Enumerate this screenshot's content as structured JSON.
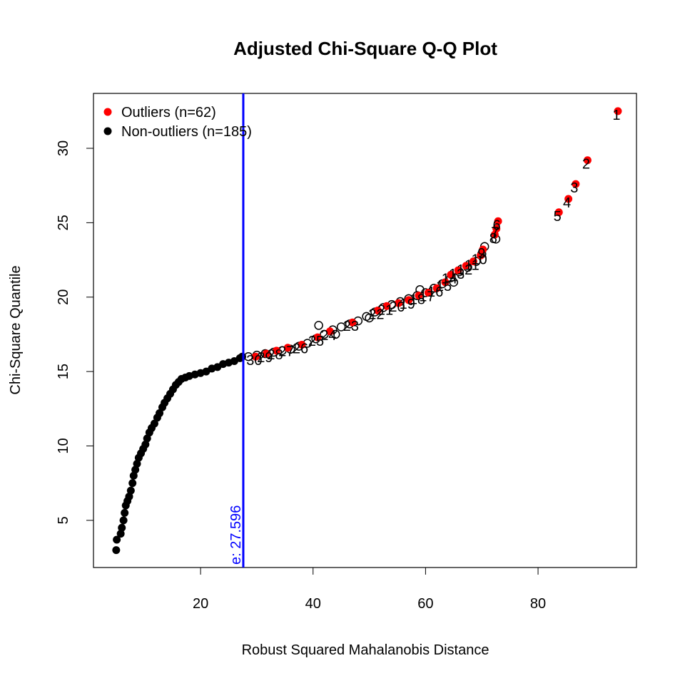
{
  "chart_data": {
    "type": "scatter",
    "title": "Adjusted Chi-Square Q-Q Plot",
    "x_label": "Robust Squared Mahalanobis Distance",
    "y_label": "Chi-Square Quantile",
    "xlim": [
      0.96,
      97.5
    ],
    "ylim": [
      1.83,
      33.69
    ],
    "xticks": [
      20,
      40,
      60,
      80
    ],
    "yticks": [
      5,
      10,
      15,
      20,
      25,
      30
    ],
    "cutoff": 27.596,
    "cutoff_color": "blue",
    "cutoff_label": "e: 27.596",
    "legend": "top-left",
    "series": [
      {
        "name": "Outliers (n=62)",
        "color": "red",
        "marker": "filled",
        "x": [
          94.2,
          88.8,
          86.7,
          85.4,
          83.7,
          72.9,
          72.6,
          72.3,
          70.2,
          69.8,
          68.5,
          67.2,
          65.8,
          64.5,
          63.5,
          62,
          60.5,
          58.8,
          57,
          55.2,
          53.1,
          51.5,
          47,
          43,
          40.8,
          38,
          35.5,
          33.5,
          31.7,
          29.8
        ],
        "values": [
          32.5,
          29.2,
          27.6,
          26.6,
          25.7,
          25.1,
          24.6,
          24.2,
          23.2,
          22.8,
          22.4,
          22.1,
          21.8,
          21.5,
          21.0,
          20.6,
          20.3,
          20.1,
          19.8,
          19.6,
          19.4,
          19.1,
          18.3,
          17.7,
          17.3,
          16.8,
          16.6,
          16.4,
          16.2,
          16.0
        ],
        "point_labels": [
          "1",
          "2",
          "3",
          "4",
          "5",
          "6",
          "7",
          "8",
          "9",
          "10",
          "11",
          "12",
          "13",
          "14",
          "15",
          "16",
          "17",
          "18",
          "19",
          "20",
          "21",
          "22",
          "23",
          "24",
          "25",
          "26",
          "27",
          "28",
          "29",
          "30"
        ]
      },
      {
        "name": "Non-outliers (n=185)",
        "color": "black",
        "marker": "filled",
        "x": [
          5,
          5.1,
          5.8,
          6,
          6.3,
          6.5,
          6.7,
          7,
          7.3,
          7.6,
          7.9,
          8.1,
          8.4,
          8.7,
          9,
          9.4,
          9.8,
          10.2,
          10.5,
          10.9,
          11.3,
          11.8,
          12.3,
          12.7,
          13.2,
          13.6,
          14.1,
          14.6,
          15.1,
          15.6,
          16.1,
          16.6,
          17.3,
          18,
          19,
          20,
          21,
          22,
          23,
          24,
          25,
          26,
          27,
          27.4
        ],
        "values": [
          3,
          3.7,
          4.1,
          4.5,
          5,
          5.5,
          6,
          6.3,
          6.6,
          7,
          7.5,
          8,
          8.4,
          8.8,
          9.2,
          9.5,
          9.8,
          10.1,
          10.5,
          10.9,
          11.2,
          11.5,
          11.9,
          12.2,
          12.6,
          12.9,
          13.2,
          13.5,
          13.8,
          14.1,
          14.3,
          14.5,
          14.6,
          14.7,
          14.8,
          14.9,
          15,
          15.2,
          15.3,
          15.5,
          15.6,
          15.7,
          15.9,
          16
        ]
      },
      {
        "color": "black",
        "marker": "open",
        "x": [
          28.5,
          30,
          31.5,
          33,
          34.5,
          36,
          37.5,
          39,
          40.5,
          42,
          43.5,
          45,
          46.5,
          48,
          49.5,
          51,
          52.5,
          54,
          55.5,
          57,
          58.5,
          60,
          61.5,
          63,
          64.5,
          66,
          67.5,
          69,
          70,
          70.5,
          72.5,
          41,
          44,
          50,
          59,
          65
        ],
        "values": [
          16,
          16.1,
          16.2,
          16.3,
          16.4,
          16.5,
          16.7,
          16.9,
          17.2,
          17.5,
          17.8,
          18,
          18.2,
          18.4,
          18.7,
          19,
          19.3,
          19.5,
          19.7,
          19.9,
          20.1,
          20.3,
          20.6,
          20.9,
          21.3,
          21.7,
          22,
          22.4,
          22.9,
          23.4,
          23.9,
          18.1,
          17.5,
          18.6,
          20.5,
          21.0
        ]
      }
    ]
  }
}
